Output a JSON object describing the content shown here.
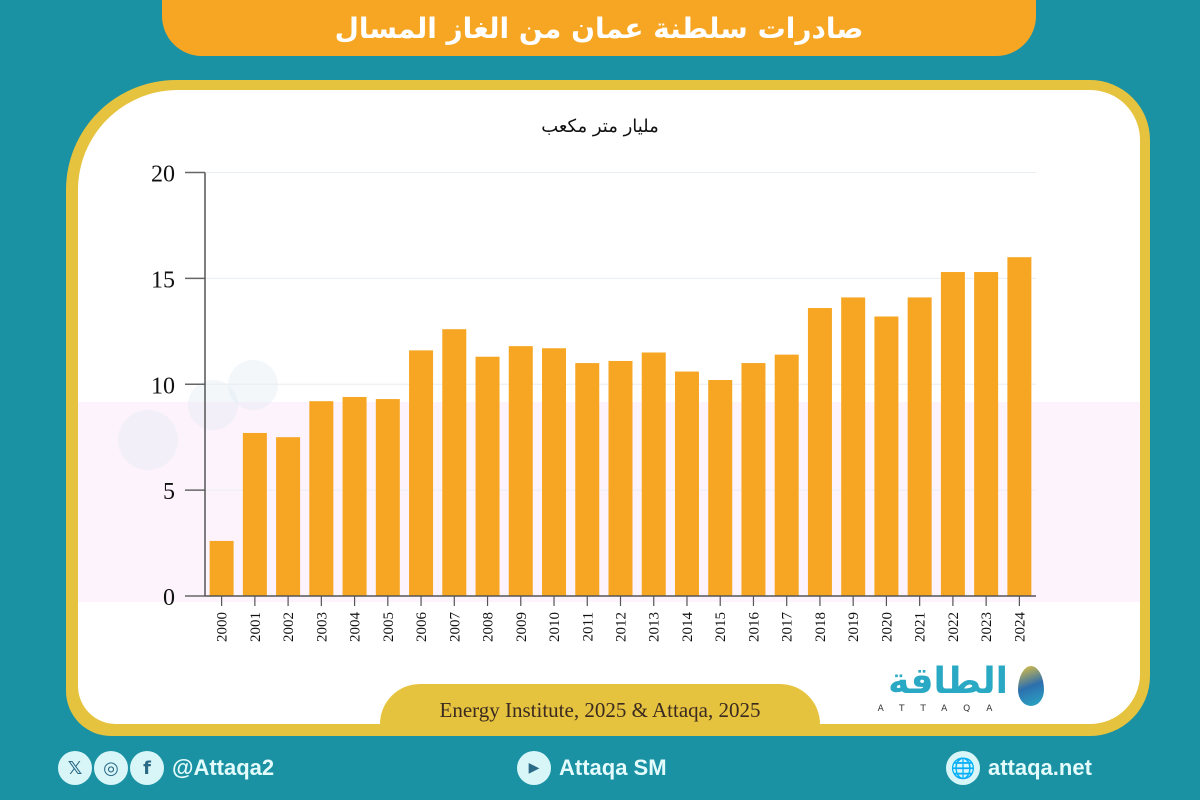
{
  "header": {
    "title": "صادرات سلطنة عمان من الغاز المسال"
  },
  "chart_data": {
    "type": "bar",
    "title": "صادرات سلطنة عمان من الغاز المسال",
    "ylabel": "مليار متر مكعب",
    "xlabel": "",
    "ylim": [
      0,
      20
    ],
    "yticks": [
      0,
      5,
      10,
      15,
      20
    ],
    "grid": true,
    "legend": null,
    "bar_color": "#f6a623",
    "categories": [
      "2000",
      "2001",
      "2002",
      "2003",
      "2004",
      "2005",
      "2006",
      "2007",
      "2008",
      "2009",
      "2010",
      "2011",
      "2012",
      "2013",
      "2014",
      "2015",
      "2016",
      "2017",
      "2018",
      "2019",
      "2020",
      "2021",
      "2022",
      "2023",
      "2024"
    ],
    "values": [
      2.6,
      7.7,
      7.5,
      9.2,
      9.4,
      9.3,
      11.6,
      12.6,
      11.3,
      11.8,
      11.7,
      11.0,
      11.1,
      11.5,
      10.6,
      10.2,
      11.0,
      11.4,
      13.6,
      14.1,
      13.2,
      14.1,
      15.3,
      15.3,
      16.0
    ]
  },
  "source": "Energy Institute, 2025 & Attaqa, 2025",
  "logo": {
    "arabic": "الطاقة",
    "english": "ATTAQA"
  },
  "footer": {
    "social_handle": "@Attaqa2",
    "youtube": "Attaqa SM",
    "website": "attaqa.net",
    "icons": {
      "x": "𝕏",
      "instagram": "◎",
      "facebook": "f",
      "youtube": "▶",
      "globe": "🌐"
    }
  },
  "colors": {
    "background": "#1b92a4",
    "accent": "#f6a623",
    "border": "#e6c33e"
  }
}
